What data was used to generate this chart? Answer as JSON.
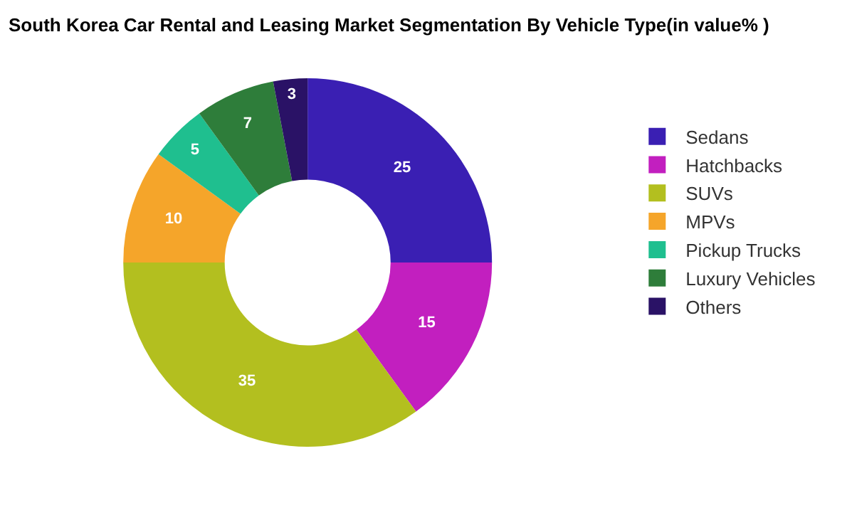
{
  "chart_data": {
    "type": "donut",
    "title": "South Korea Car Rental and Leasing Market Segmentation By Vehicle Type(in value% )",
    "categories": [
      "Sedans",
      "Hatchbacks",
      "SUVs",
      "MPVs",
      "Pickup Trucks",
      "Luxury Vehicles",
      "Others"
    ],
    "values": [
      25,
      15,
      35,
      10,
      5,
      7,
      3
    ],
    "colors": [
      "#3a1fb3",
      "#c21fbf",
      "#b3bf1f",
      "#f5a52a",
      "#1fbf8f",
      "#2e7d3a",
      "#2a1266"
    ],
    "data_labels": true,
    "legend": "right"
  }
}
